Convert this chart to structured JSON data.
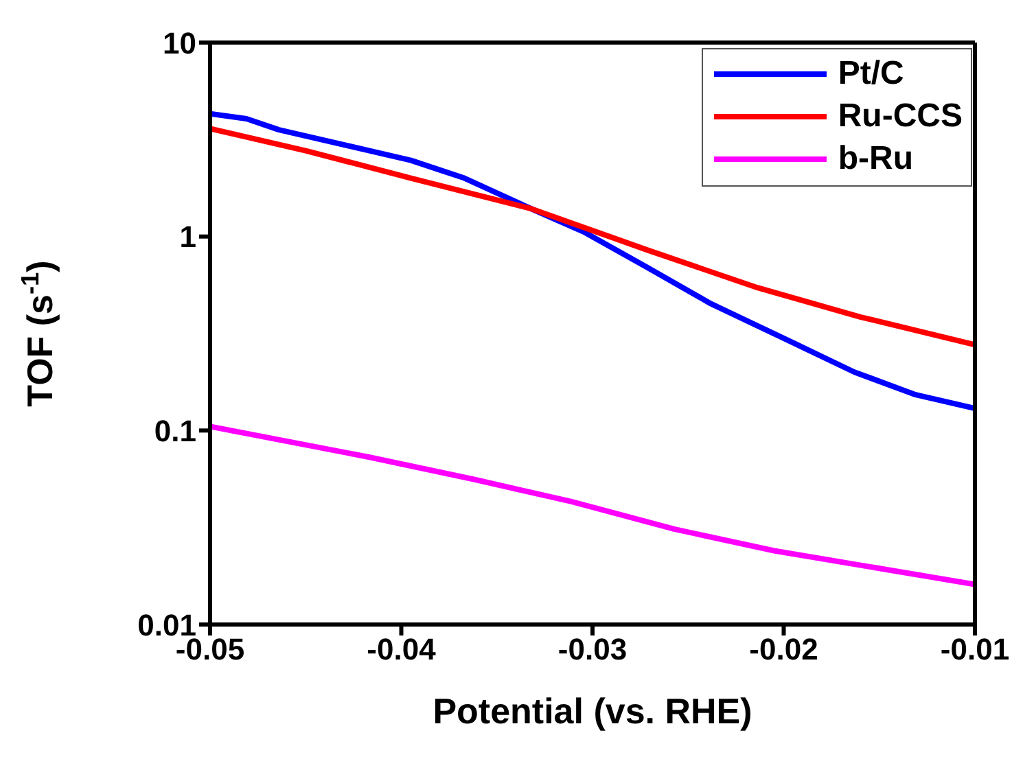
{
  "chart_data": {
    "type": "line",
    "xlabel": "Potential (vs. RHE)",
    "ylabel": "TOF (s$^{-1}$)",
    "log": "y",
    "xlim": [
      -0.05,
      -0.01
    ],
    "xticks": [
      -0.05,
      -0.04,
      -0.03,
      -0.02,
      -0.01
    ],
    "ylim": [
      0.01,
      10
    ],
    "yticks": [
      0.01,
      0.1,
      1,
      10
    ],
    "grid": false,
    "legend": "top right",
    "marker": "none",
    "line_style": "solid",
    "series": [
      {
        "name": "Pt/C",
        "color": "#0000ff",
        "x": [
          -0.05,
          -0.0481,
          -0.0464,
          -0.0395,
          -0.0367,
          -0.0332,
          -0.0304,
          -0.0271,
          -0.0238,
          -0.0194,
          -0.0163,
          -0.0131,
          -0.01
        ],
        "values": [
          4.3,
          4.05,
          3.55,
          2.47,
          2.0,
          1.39,
          1.05,
          0.69,
          0.45,
          0.28,
          0.2,
          0.153,
          0.13
        ]
      },
      {
        "name": "Ru-CCS",
        "color": "#ff0000",
        "x": [
          -0.05,
          -0.045,
          -0.0395,
          -0.0332,
          -0.0271,
          -0.0215,
          -0.016,
          -0.01
        ],
        "values": [
          3.6,
          2.77,
          2.0,
          1.39,
          0.85,
          0.55,
          0.385,
          0.277
        ]
      },
      {
        "name": "b-Ru",
        "color": "#ff00ff",
        "x": [
          -0.05,
          -0.0417,
          -0.0362,
          -0.0311,
          -0.0257,
          -0.0205,
          -0.01
        ],
        "values": [
          0.105,
          0.073,
          0.056,
          0.043,
          0.031,
          0.024,
          0.0161
        ]
      }
    ]
  }
}
